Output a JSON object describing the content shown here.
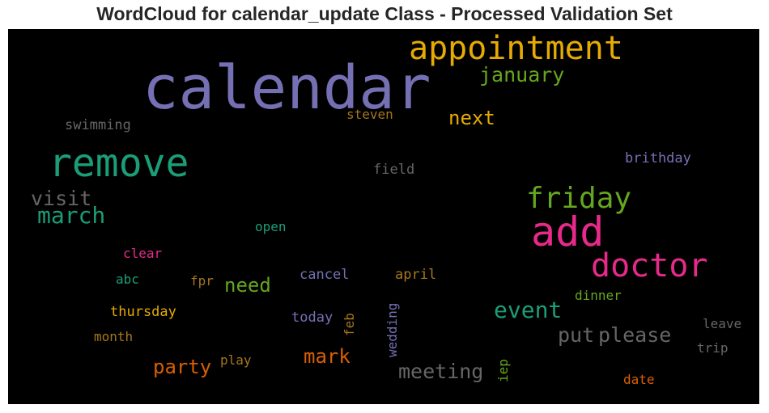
{
  "title": "WordCloud for calendar_update Class - Processed Validation Set",
  "chart_data": {
    "type": "wordcloud",
    "title": "WordCloud for calendar_update Class - Processed Validation Set",
    "background": "#000000",
    "words": [
      {
        "text": "calendar",
        "weight": 1.0,
        "color": "#7570b3",
        "orientation": "horizontal"
      },
      {
        "text": "appointment",
        "weight": 0.55,
        "color": "#e6ab02",
        "orientation": "horizontal"
      },
      {
        "text": "remove",
        "weight": 0.66,
        "color": "#1b9e77",
        "orientation": "horizontal"
      },
      {
        "text": "add",
        "weight": 0.68,
        "color": "#e7298a",
        "orientation": "horizontal"
      },
      {
        "text": "doctor",
        "weight": 0.55,
        "color": "#e7298a",
        "orientation": "horizontal"
      },
      {
        "text": "friday",
        "weight": 0.48,
        "color": "#66a61e",
        "orientation": "horizontal"
      },
      {
        "text": "january",
        "weight": 0.34,
        "color": "#66a61e",
        "orientation": "horizontal"
      },
      {
        "text": "next",
        "weight": 0.33,
        "color": "#e6ab02",
        "orientation": "horizontal"
      },
      {
        "text": "march",
        "weight": 0.38,
        "color": "#1b9e77",
        "orientation": "horizontal"
      },
      {
        "text": "visit",
        "weight": 0.34,
        "color": "#666666",
        "orientation": "horizontal"
      },
      {
        "text": "event",
        "weight": 0.38,
        "color": "#1b9e77",
        "orientation": "horizontal"
      },
      {
        "text": "need",
        "weight": 0.33,
        "color": "#66a61e",
        "orientation": "horizontal"
      },
      {
        "text": "please",
        "weight": 0.34,
        "color": "#666666",
        "orientation": "horizontal"
      },
      {
        "text": "put",
        "weight": 0.34,
        "color": "#666666",
        "orientation": "horizontal"
      },
      {
        "text": "party",
        "weight": 0.32,
        "color": "#d95f02",
        "orientation": "horizontal"
      },
      {
        "text": "mark",
        "weight": 0.32,
        "color": "#d95f02",
        "orientation": "horizontal"
      },
      {
        "text": "meeting",
        "weight": 0.34,
        "color": "#666666",
        "orientation": "horizontal"
      },
      {
        "text": "swimming",
        "weight": 0.23,
        "color": "#666666",
        "orientation": "horizontal"
      },
      {
        "text": "steven",
        "weight": 0.22,
        "color": "#a6761d",
        "orientation": "horizontal"
      },
      {
        "text": "field",
        "weight": 0.23,
        "color": "#666666",
        "orientation": "horizontal"
      },
      {
        "text": "brithday",
        "weight": 0.23,
        "color": "#7570b3",
        "orientation": "horizontal"
      },
      {
        "text": "open",
        "weight": 0.22,
        "color": "#1b9e77",
        "orientation": "horizontal"
      },
      {
        "text": "clear",
        "weight": 0.22,
        "color": "#e7298a",
        "orientation": "horizontal"
      },
      {
        "text": "abc",
        "weight": 0.22,
        "color": "#1b9e77",
        "orientation": "horizontal"
      },
      {
        "text": "fpr",
        "weight": 0.22,
        "color": "#a6761d",
        "orientation": "horizontal"
      },
      {
        "text": "cancel",
        "weight": 0.23,
        "color": "#7570b3",
        "orientation": "horizontal"
      },
      {
        "text": "april",
        "weight": 0.23,
        "color": "#a6761d",
        "orientation": "horizontal"
      },
      {
        "text": "dinner",
        "weight": 0.22,
        "color": "#66a61e",
        "orientation": "horizontal"
      },
      {
        "text": "thursday",
        "weight": 0.23,
        "color": "#e6ab02",
        "orientation": "horizontal"
      },
      {
        "text": "today",
        "weight": 0.23,
        "color": "#7570b3",
        "orientation": "horizontal"
      },
      {
        "text": "feb",
        "weight": 0.22,
        "color": "#a6761d",
        "orientation": "vertical"
      },
      {
        "text": "wedding",
        "weight": 0.22,
        "color": "#7570b3",
        "orientation": "vertical"
      },
      {
        "text": "leave",
        "weight": 0.22,
        "color": "#666666",
        "orientation": "horizontal"
      },
      {
        "text": "month",
        "weight": 0.22,
        "color": "#a6761d",
        "orientation": "horizontal"
      },
      {
        "text": "trip",
        "weight": 0.22,
        "color": "#666666",
        "orientation": "horizontal"
      },
      {
        "text": "play",
        "weight": 0.22,
        "color": "#a6761d",
        "orientation": "horizontal"
      },
      {
        "text": "iep",
        "weight": 0.22,
        "color": "#66a61e",
        "orientation": "vertical"
      },
      {
        "text": "date",
        "weight": 0.22,
        "color": "#d95f02",
        "orientation": "horizontal"
      }
    ]
  }
}
